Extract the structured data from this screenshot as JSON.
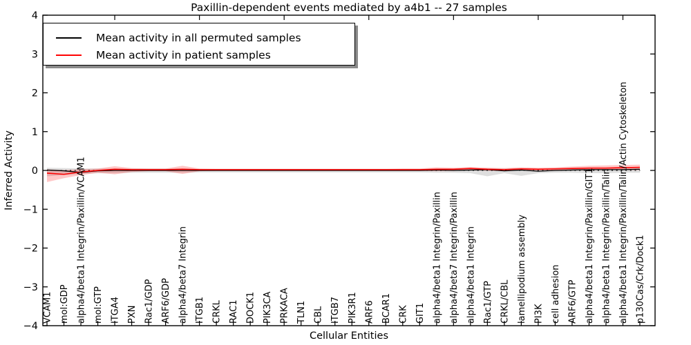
{
  "chart_data": {
    "type": "line",
    "title": "Paxillin-dependent events mediated by a4b1 -- 27 samples",
    "xlabel": "Cellular Entities",
    "ylabel": "Inferred Activity",
    "ylim": [
      -4,
      4
    ],
    "yticks": [
      4,
      3,
      2,
      1,
      0,
      -1,
      -2,
      -3,
      -4
    ],
    "grid": false,
    "legend_position": "upper-left",
    "zero_line_style": "dotted-black",
    "categories": [
      "VCAM1",
      "mol:GDP",
      "alpha4/beta1 Integrin/Paxillin/VCAM1",
      "mol:GTP",
      "ITGA4",
      "PXN",
      "Rac1/GDP",
      "ARF6/GDP",
      "alpha4/beta7 Integrin",
      "ITGB1",
      "CRKL",
      "RAC1",
      "DOCK1",
      "PIK3CA",
      "PRKACA",
      "TLN1",
      "CBL",
      "ITGB7",
      "PIK3R1",
      "ARF6",
      "BCAR1",
      "CRK",
      "GIT1",
      "alpha4/beta1 Integrin/Paxillin",
      "alpha4/beta7 Integrin/Paxillin",
      "alpha4/beta1 Integrin",
      "Rac1/GTP",
      "CRKL/CBL",
      "lamellipodium assembly",
      "PI3K",
      "cell adhesion",
      "ARF6/GTP",
      "alpha4/beta1 Integrin/Paxillin/GIT1",
      "alpha4/beta1 Integrin/Paxillin/Talin",
      "alpha4/beta1 Integrin/Paxillin/Talin/Actin Cytoskeleton",
      "p130Cas/Crk/Dock1"
    ],
    "series": [
      {
        "name": "Mean activity in all permuted samples",
        "color": "#000000",
        "band_color": "#999999",
        "band_opacity": 0.32,
        "values": [
          0.01,
          -0.01,
          -0.05,
          -0.01,
          0,
          0,
          0,
          0,
          0,
          0,
          0,
          0,
          0,
          0,
          0,
          0,
          0,
          0,
          0,
          0,
          0,
          0,
          0,
          0.01,
          0,
          0.01,
          0.02,
          -0.01,
          0.01,
          -0.02,
          0,
          0.01,
          0.02,
          0.02,
          0.02,
          0.03
        ],
        "band_low": [
          -0.15,
          -0.12,
          -0.09,
          -0.07,
          -0.07,
          -0.06,
          -0.06,
          -0.06,
          -0.06,
          -0.05,
          -0.05,
          -0.05,
          -0.05,
          -0.05,
          -0.05,
          -0.05,
          -0.05,
          -0.05,
          -0.05,
          -0.05,
          -0.05,
          -0.05,
          -0.05,
          -0.06,
          -0.06,
          -0.07,
          -0.15,
          -0.07,
          -0.14,
          -0.07,
          -0.06,
          -0.06,
          -0.07,
          -0.07,
          -0.06,
          -0.06
        ],
        "band_high": [
          0.07,
          0.06,
          0.05,
          0.05,
          0.05,
          0.05,
          0.05,
          0.05,
          0.05,
          0.04,
          0.04,
          0.04,
          0.04,
          0.04,
          0.04,
          0.04,
          0.04,
          0.04,
          0.04,
          0.04,
          0.04,
          0.04,
          0.04,
          0.05,
          0.05,
          0.05,
          0.06,
          0.05,
          0.06,
          0.05,
          0.05,
          0.05,
          0.06,
          0.06,
          0.06,
          0.06
        ]
      },
      {
        "name": "Mean activity in patient samples",
        "color": "#ff0000",
        "band_color": "#ff0000",
        "band_opacity": 0.22,
        "values": [
          -0.07,
          -0.1,
          -0.04,
          0,
          0.03,
          0.02,
          0.02,
          0.02,
          0.03,
          0.02,
          0.02,
          0.02,
          0.02,
          0.02,
          0.02,
          0.02,
          0.02,
          0.02,
          0.02,
          0.02,
          0.02,
          0.02,
          0.02,
          0.03,
          0.03,
          0.05,
          0.03,
          0.02,
          0.04,
          0.03,
          0.04,
          0.05,
          0.06,
          0.06,
          0.07,
          0.08
        ],
        "band_low": [
          -0.3,
          -0.2,
          -0.12,
          -0.06,
          -0.1,
          -0.04,
          -0.02,
          -0.02,
          -0.09,
          -0.02,
          -0.01,
          -0.01,
          -0.01,
          -0.01,
          -0.01,
          -0.01,
          -0.01,
          -0.01,
          -0.01,
          -0.01,
          -0.01,
          -0.01,
          -0.01,
          -0.02,
          -0.01,
          0,
          -0.01,
          -0.01,
          0,
          0,
          0,
          0,
          0,
          0.01,
          0.01,
          0.01
        ],
        "band_high": [
          0.03,
          0.01,
          0.03,
          0.05,
          0.11,
          0.06,
          0.05,
          0.05,
          0.12,
          0.05,
          0.04,
          0.04,
          0.04,
          0.04,
          0.04,
          0.04,
          0.04,
          0.04,
          0.04,
          0.04,
          0.04,
          0.05,
          0.05,
          0.08,
          0.07,
          0.09,
          0.07,
          0.06,
          0.08,
          0.07,
          0.08,
          0.1,
          0.12,
          0.13,
          0.14,
          0.15
        ]
      }
    ]
  }
}
